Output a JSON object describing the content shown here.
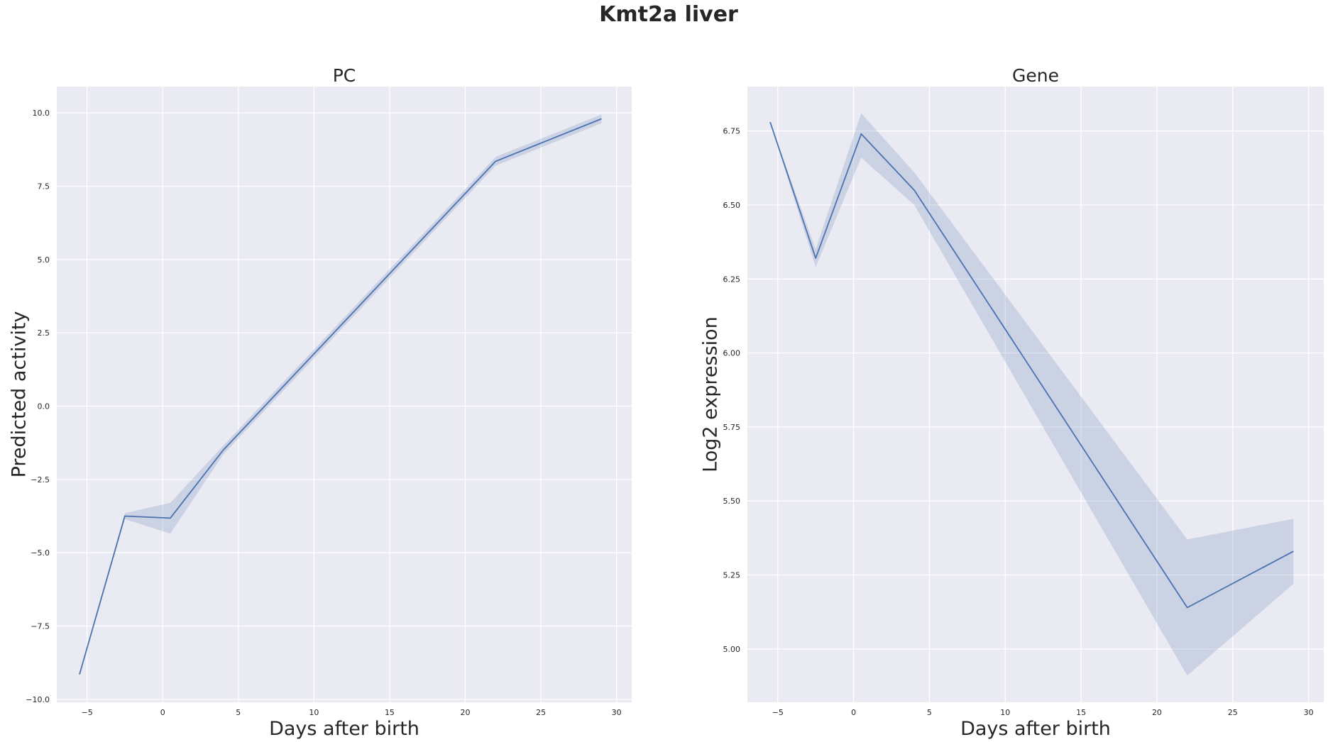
{
  "figure": {
    "title": "Kmt2a liver"
  },
  "chart_data": [
    {
      "type": "line",
      "title": "PC",
      "xlabel": "Days after birth",
      "ylabel": "Predicted activity",
      "xlim": [
        -7,
        31
      ],
      "ylim": [
        -10.1,
        10.9
      ],
      "xticks": [
        -5,
        0,
        5,
        10,
        15,
        20,
        25,
        30
      ],
      "yticks": [
        -10.0,
        -7.5,
        -5.0,
        -2.5,
        0.0,
        2.5,
        5.0,
        7.5,
        10.0
      ],
      "ytick_labels": [
        "−10.0",
        "−7.5",
        "−5.0",
        "−2.5",
        "0.0",
        "2.5",
        "5.0",
        "7.5",
        "10.0"
      ],
      "xtick_labels": [
        "−5",
        "0",
        "5",
        "10",
        "15",
        "20",
        "25",
        "30"
      ],
      "grid": true,
      "series": [
        {
          "x": [
            -5.5,
            -2.5,
            0.5,
            4,
            22,
            29
          ],
          "y": [
            -9.15,
            -3.75,
            -3.82,
            -1.5,
            8.35,
            9.8
          ],
          "ci_low": [
            -9.15,
            -3.85,
            -4.35,
            -1.65,
            8.2,
            9.65
          ],
          "ci_high": [
            -9.15,
            -3.65,
            -3.3,
            -1.35,
            8.5,
            9.95
          ]
        }
      ]
    },
    {
      "type": "line",
      "title": "Gene",
      "xlabel": "Days after birth",
      "ylabel": "Log2 expression",
      "xlim": [
        -7,
        31
      ],
      "ylim": [
        4.82,
        6.9
      ],
      "xticks": [
        -5,
        0,
        5,
        10,
        15,
        20,
        25,
        30
      ],
      "yticks": [
        5.0,
        5.25,
        5.5,
        5.75,
        6.0,
        6.25,
        6.5,
        6.75
      ],
      "ytick_labels": [
        "5.00",
        "5.25",
        "5.50",
        "5.75",
        "6.00",
        "6.25",
        "6.50",
        "6.75"
      ],
      "xtick_labels": [
        "−5",
        "0",
        "5",
        "10",
        "15",
        "20",
        "25",
        "30"
      ],
      "grid": true,
      "series": [
        {
          "x": [
            -5.5,
            -2.5,
            0.5,
            4,
            22,
            29
          ],
          "y": [
            6.78,
            6.32,
            6.74,
            6.55,
            5.14,
            5.33
          ],
          "ci_low": [
            6.78,
            6.29,
            6.66,
            6.5,
            4.91,
            5.22
          ],
          "ci_high": [
            6.78,
            6.35,
            6.81,
            6.61,
            5.37,
            5.44
          ]
        }
      ]
    }
  ]
}
